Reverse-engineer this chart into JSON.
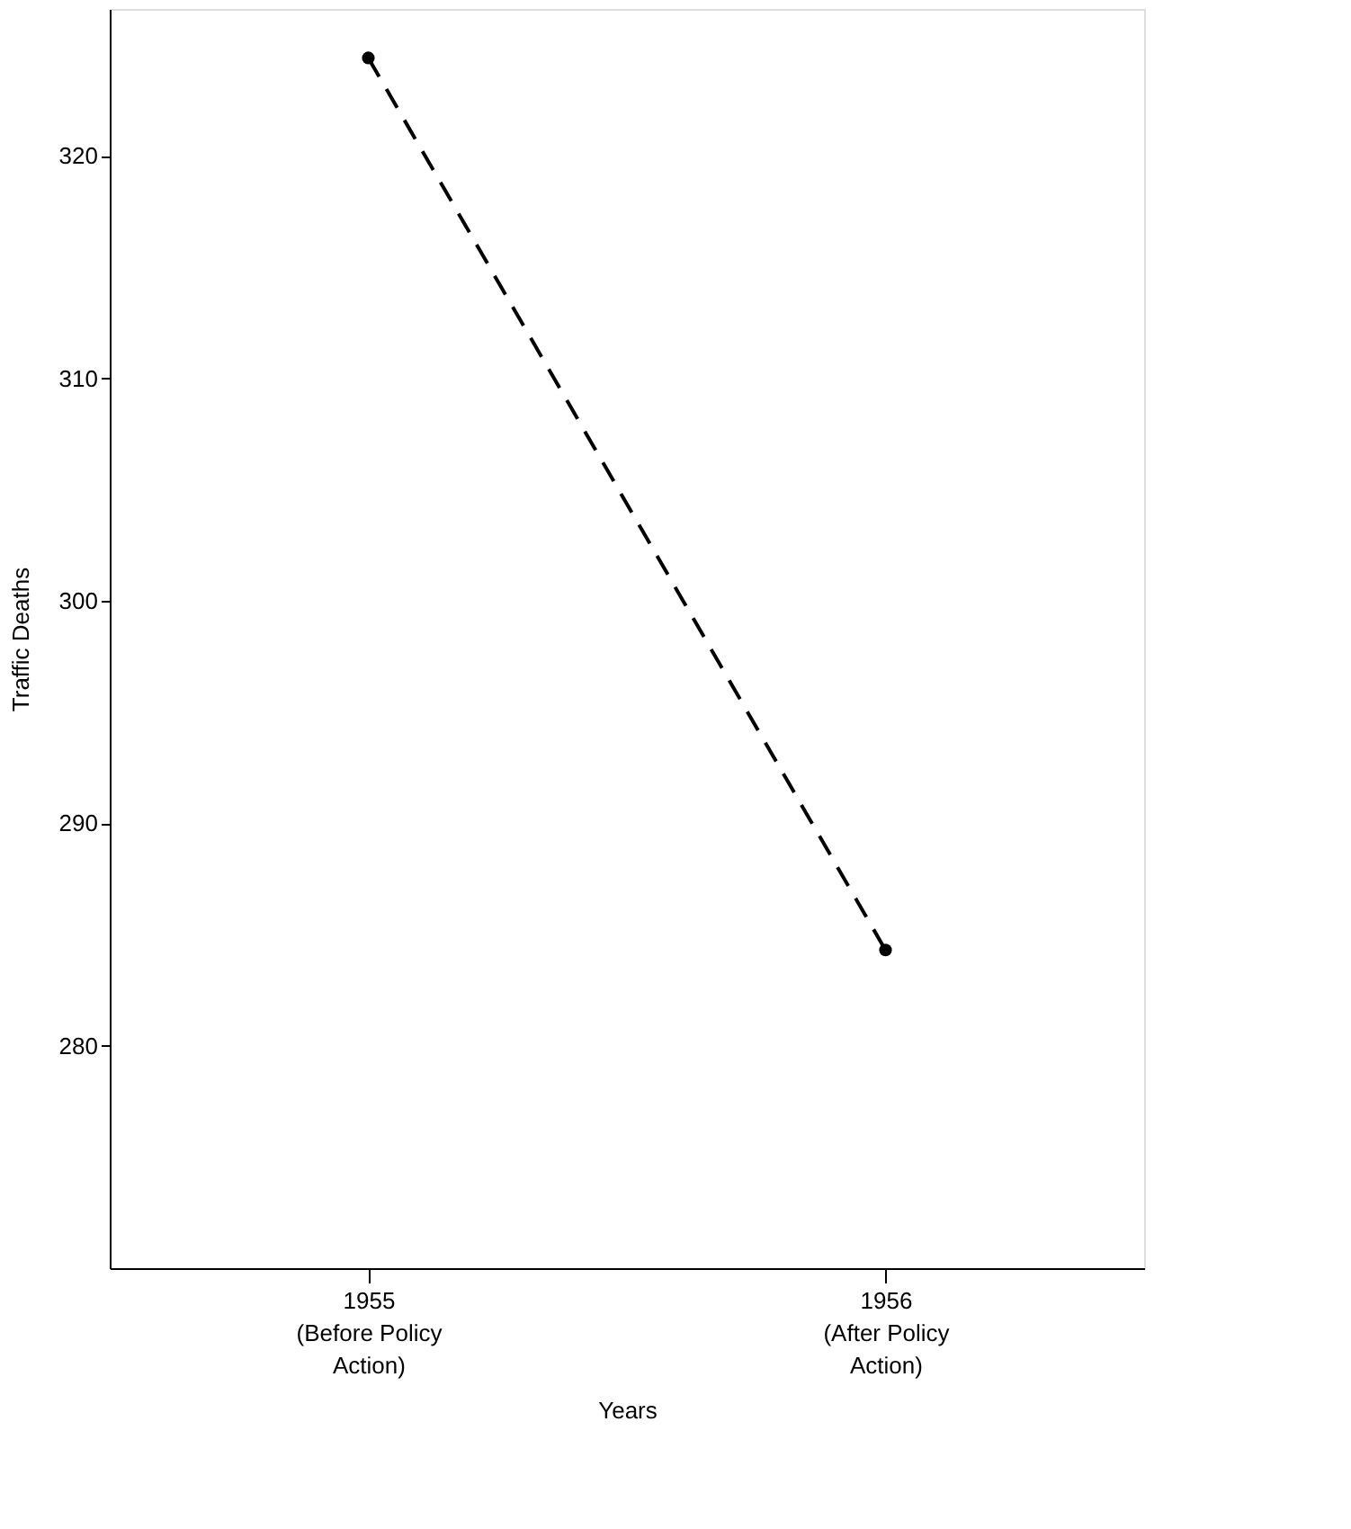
{
  "chart_data": {
    "type": "line",
    "xlabel": "Years",
    "ylabel": "Traffic Deaths",
    "categories": [
      "1955\n(Before Policy\nAction)",
      "1956\n(After Policy\nAction)"
    ],
    "series": [
      {
        "color": "#000000",
        "values": [
          324.4,
          284.3
        ]
      }
    ],
    "ylim": [
      270,
      326.6
    ],
    "yticks": [
      280,
      290,
      300,
      310,
      320
    ],
    "grid": false,
    "marker": "circle",
    "line_style": "dashed"
  }
}
